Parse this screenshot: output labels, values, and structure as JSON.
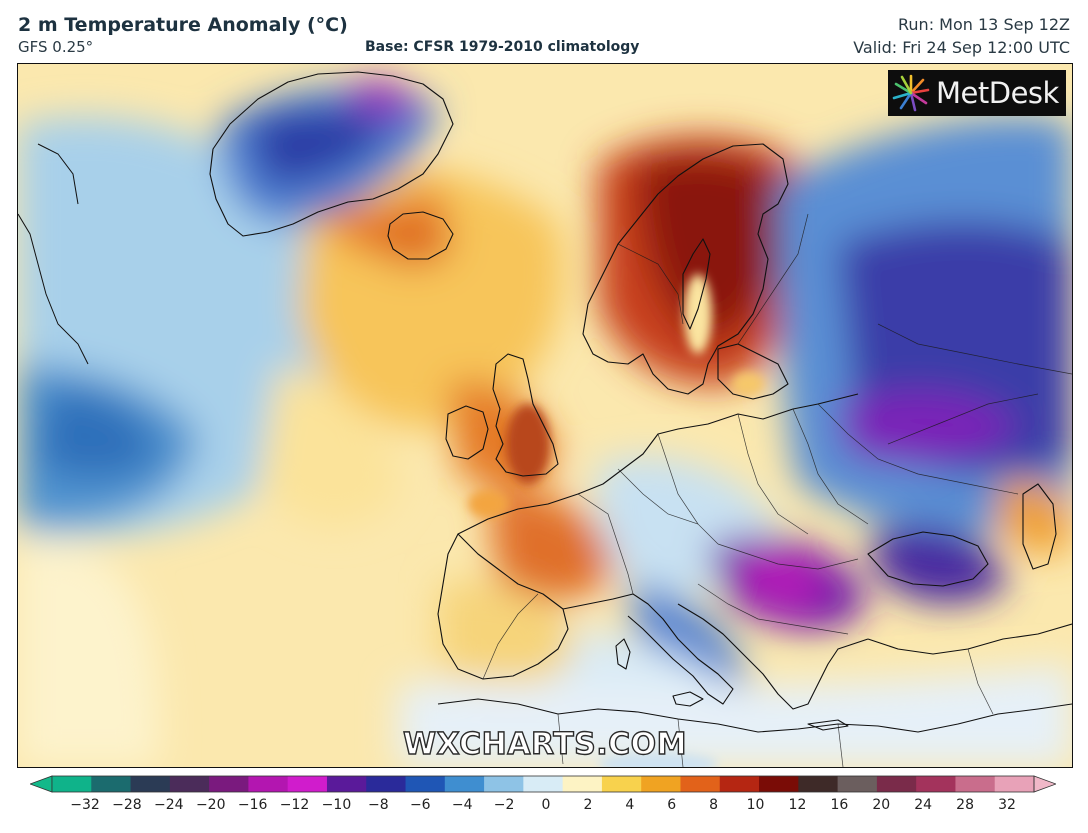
{
  "header": {
    "title": "2 m Temperature Anomaly (°C)",
    "model": "GFS 0.25°",
    "base": "Base: CFSR 1979-2010 climatology",
    "run": "Run: Mon 13 Sep 12Z",
    "valid": "Valid: Fri 24 Sep 12:00 UTC"
  },
  "logo": {
    "text": "MetDesk",
    "icon": "metdesk-burst-icon"
  },
  "watermark": "WXCHARTS.COM",
  "colorbar": {
    "ticks": [
      "−32",
      "−28",
      "−24",
      "−20",
      "−16",
      "−12",
      "−10",
      "−8",
      "−6",
      "−4",
      "−2",
      "0",
      "2",
      "4",
      "6",
      "8",
      "10",
      "12",
      "16",
      "20",
      "24",
      "28",
      "32"
    ],
    "colors": [
      "#0fb38a",
      "#1b6b6e",
      "#2b3b55",
      "#4b2c5a",
      "#7a1a7e",
      "#b316b0",
      "#d01ccc",
      "#5a1a9a",
      "#2a2a9a",
      "#1f56b5",
      "#3f8ed0",
      "#8ec3e6",
      "#d8ecf6",
      "#fdf3c4",
      "#f8d24d",
      "#f0a322",
      "#e2621a",
      "#b52612",
      "#7a0c06",
      "#3e2a28",
      "#6b5e5e",
      "#7a2b4a",
      "#a3335c",
      "#c96d8c",
      "#e8a2b8"
    ]
  }
}
